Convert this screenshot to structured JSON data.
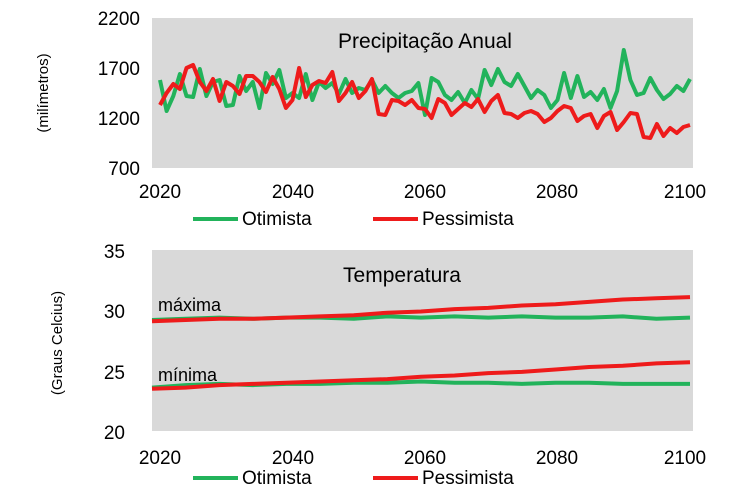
{
  "colors": {
    "otimista": "#22b35b",
    "pessimista": "#ee1b1b",
    "plot_bg": "#d9d9d9"
  },
  "chart_data": [
    {
      "type": "line",
      "title": "Precipitação Anual",
      "ylabel": "(milímetros)",
      "xlabel": "",
      "xlim": [
        2020,
        2100
      ],
      "ylim": [
        700,
        2200
      ],
      "yticks": [
        "700",
        "1200",
        "1700",
        "2200"
      ],
      "xticks": [
        "2020",
        "2040",
        "2060",
        "2080",
        "2100"
      ],
      "grid": false,
      "legend": "bottom",
      "x": [
        2020,
        2021,
        2022,
        2023,
        2024,
        2025,
        2026,
        2027,
        2028,
        2029,
        2030,
        2031,
        2032,
        2033,
        2034,
        2035,
        2036,
        2037,
        2038,
        2039,
        2040,
        2041,
        2042,
        2043,
        2044,
        2045,
        2046,
        2047,
        2048,
        2049,
        2050,
        2051,
        2052,
        2053,
        2054,
        2055,
        2056,
        2057,
        2058,
        2059,
        2060,
        2061,
        2062,
        2063,
        2064,
        2065,
        2066,
        2067,
        2068,
        2069,
        2070,
        2071,
        2072,
        2073,
        2074,
        2075,
        2076,
        2077,
        2078,
        2079,
        2080,
        2081,
        2082,
        2083,
        2084,
        2085,
        2086,
        2087,
        2088,
        2089,
        2090,
        2091,
        2092,
        2093,
        2094,
        2095,
        2096,
        2097,
        2098,
        2099,
        2100
      ],
      "series": [
        {
          "name": "Otimista",
          "values": [
            1580,
            1270,
            1420,
            1640,
            1420,
            1410,
            1690,
            1420,
            1560,
            1580,
            1320,
            1330,
            1620,
            1470,
            1560,
            1300,
            1650,
            1540,
            1680,
            1400,
            1450,
            1400,
            1640,
            1380,
            1560,
            1500,
            1550,
            1440,
            1590,
            1450,
            1500,
            1480,
            1580,
            1450,
            1520,
            1450,
            1400,
            1450,
            1470,
            1550,
            1230,
            1600,
            1560,
            1430,
            1380,
            1460,
            1350,
            1480,
            1390,
            1680,
            1530,
            1690,
            1560,
            1520,
            1640,
            1520,
            1400,
            1480,
            1430,
            1300,
            1380,
            1650,
            1400,
            1620,
            1410,
            1460,
            1380,
            1490,
            1300,
            1470,
            1880,
            1580,
            1430,
            1450,
            1600,
            1480,
            1390,
            1440,
            1520,
            1470,
            1590
          ]
        },
        {
          "name": "Pessimista",
          "values": [
            1330,
            1450,
            1540,
            1490,
            1700,
            1730,
            1560,
            1470,
            1590,
            1370,
            1560,
            1520,
            1440,
            1620,
            1620,
            1560,
            1460,
            1610,
            1490,
            1300,
            1380,
            1700,
            1410,
            1530,
            1570,
            1550,
            1660,
            1370,
            1450,
            1560,
            1400,
            1470,
            1590,
            1240,
            1230,
            1380,
            1370,
            1330,
            1380,
            1300,
            1290,
            1200,
            1390,
            1350,
            1230,
            1290,
            1350,
            1310,
            1390,
            1260,
            1370,
            1430,
            1250,
            1240,
            1200,
            1250,
            1270,
            1240,
            1160,
            1200,
            1270,
            1320,
            1300,
            1170,
            1220,
            1240,
            1100,
            1220,
            1260,
            1080,
            1160,
            1250,
            1240,
            1010,
            1000,
            1140,
            1020,
            1100,
            1050,
            1110,
            1130
          ]
        }
      ]
    },
    {
      "type": "line",
      "title": "Temperatura",
      "ylabel": "(Graus Celcius)",
      "xlabel": "",
      "xlim": [
        2020,
        2100
      ],
      "ylim": [
        20,
        35
      ],
      "yticks": [
        "20",
        "25",
        "30",
        "35"
      ],
      "xticks": [
        "2020",
        "2040",
        "2060",
        "2080",
        "2100"
      ],
      "grid": false,
      "legend": "bottom",
      "annotations": [
        "máxima",
        "mínima"
      ],
      "series": [
        {
          "name": "Otimista",
          "group": "máxima",
          "x": [
            2020,
            2025,
            2030,
            2035,
            2040,
            2045,
            2050,
            2055,
            2060,
            2065,
            2070,
            2075,
            2080,
            2085,
            2090,
            2095,
            2100
          ],
          "values": [
            29.2,
            29.3,
            29.4,
            29.3,
            29.4,
            29.4,
            29.3,
            29.5,
            29.4,
            29.5,
            29.4,
            29.5,
            29.4,
            29.4,
            29.5,
            29.3,
            29.4
          ]
        },
        {
          "name": "Pessimista",
          "group": "máxima",
          "x": [
            2020,
            2025,
            2030,
            2035,
            2040,
            2045,
            2050,
            2055,
            2060,
            2065,
            2070,
            2075,
            2080,
            2085,
            2090,
            2095,
            2100
          ],
          "values": [
            29.1,
            29.2,
            29.3,
            29.3,
            29.4,
            29.5,
            29.6,
            29.8,
            29.9,
            30.1,
            30.2,
            30.4,
            30.5,
            30.7,
            30.9,
            31.0,
            31.1
          ]
        },
        {
          "name": "Otimista",
          "group": "mínima",
          "x": [
            2020,
            2025,
            2030,
            2035,
            2040,
            2045,
            2050,
            2055,
            2060,
            2065,
            2070,
            2075,
            2080,
            2085,
            2090,
            2095,
            2100
          ],
          "values": [
            23.6,
            23.8,
            23.9,
            23.8,
            23.9,
            23.9,
            24.0,
            24.0,
            24.1,
            24.0,
            24.0,
            23.9,
            24.0,
            24.0,
            23.9,
            23.9,
            23.9
          ]
        },
        {
          "name": "Pessimista",
          "group": "mínima",
          "x": [
            2020,
            2025,
            2030,
            2035,
            2040,
            2045,
            2050,
            2055,
            2060,
            2065,
            2070,
            2075,
            2080,
            2085,
            2090,
            2095,
            2100
          ],
          "values": [
            23.5,
            23.6,
            23.8,
            23.9,
            24.0,
            24.1,
            24.2,
            24.3,
            24.5,
            24.6,
            24.8,
            24.9,
            25.1,
            25.3,
            25.4,
            25.6,
            25.7
          ]
        }
      ]
    }
  ],
  "legend": {
    "otimista": "Otimista",
    "pessimista": "Pessimista"
  }
}
